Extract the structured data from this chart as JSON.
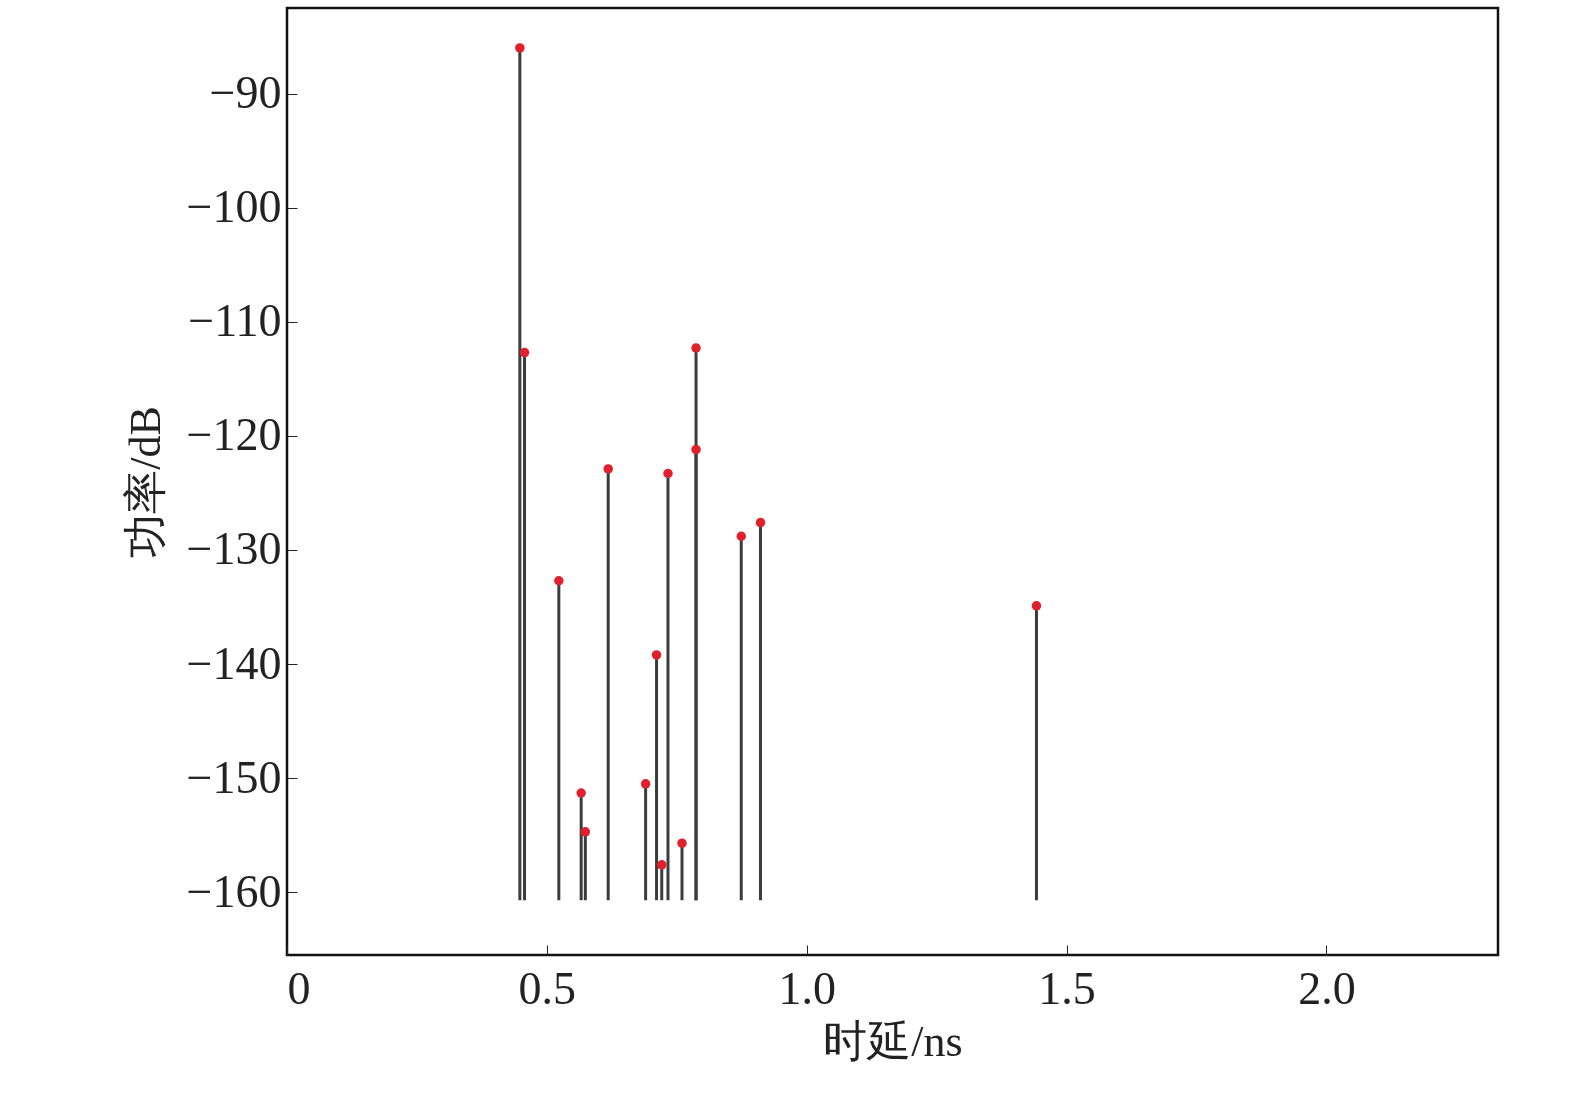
{
  "chart_data": {
    "type": "scatter",
    "xlabel": "时延/ns",
    "ylabel": "功率/dB",
    "x": [
      0.448,
      0.457,
      0.523,
      0.566,
      0.574,
      0.618,
      0.69,
      0.711,
      0.721,
      0.733,
      0.76,
      0.787,
      0.787,
      0.874,
      0.911,
      1.442
    ],
    "series": [
      {
        "color": "#e0202a",
        "values": [
          -86.0,
          -112.7,
          -132.7,
          -151.3,
          -154.7,
          -122.9,
          -150.5,
          -139.2,
          -157.6,
          -123.3,
          -155.7,
          -112.3,
          -121.2,
          -128.8,
          -127.6,
          -134.9
        ],
        "errors": [
          [
            -160.7,
            -86.0
          ],
          [
            -160.7,
            -112.7
          ],
          [
            -160.7,
            -132.7
          ],
          [
            -160.7,
            -151.3
          ],
          [
            -160.7,
            -154.7
          ],
          [
            -160.7,
            -122.9
          ],
          [
            -160.7,
            -150.5
          ],
          [
            -160.7,
            -139.2
          ],
          [
            -160.7,
            -157.6
          ],
          [
            -160.7,
            -123.3
          ],
          [
            -160.7,
            -155.7
          ],
          [
            -160.7,
            -112.3
          ],
          [
            -160.7,
            -121.2
          ],
          [
            -160.7,
            -128.8
          ],
          [
            -160.7,
            -127.6
          ],
          [
            -160.7,
            -134.9
          ]
        ]
      }
    ],
    "marker": "circle",
    "xlim": [
      0,
      2.33
    ],
    "xticks": [
      0,
      0.5,
      {
        "value": 1,
        "label": "1.0"
      },
      1.5,
      {
        "value": 2,
        "label": "2.0"
      }
    ],
    "ylim": [
      -165.5,
      -82.5
    ],
    "yticks": [
      {
        "value": -90,
        "label": "−90"
      },
      {
        "value": -100,
        "label": "−100"
      },
      {
        "value": -110,
        "label": "−110"
      },
      {
        "value": -120,
        "label": "−120"
      },
      {
        "value": -130,
        "label": "−130"
      },
      {
        "value": -140,
        "label": "−140"
      },
      {
        "value": -150,
        "label": "−150"
      },
      {
        "value": -160,
        "label": "−160"
      }
    ],
    "grid": false
  }
}
